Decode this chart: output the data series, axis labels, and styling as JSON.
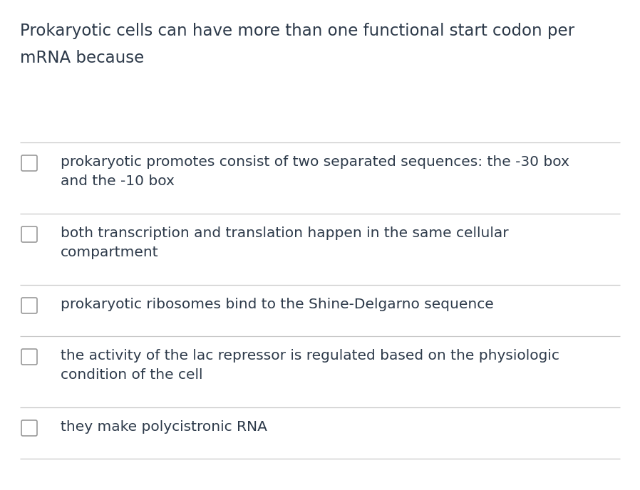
{
  "background_color": "#ffffff",
  "title_lines": [
    "Prokaryotic cells can have more than one functional start codon per",
    "mRNA because"
  ],
  "title_fontsize": 16.5,
  "title_color": "#2d3a4a",
  "options": [
    [
      "prokaryotic promotes consist of two separated sequences: the -30 box",
      "and the -10 box"
    ],
    [
      "both transcription and translation happen in the same cellular",
      "compartment"
    ],
    [
      "prokaryotic ribosomes bind to the Shine-Delgarno sequence"
    ],
    [
      "the activity of the lac repressor is regulated based on the physiologic",
      "condition of the cell"
    ],
    [
      "they make polycistronic RNA"
    ]
  ],
  "option_fontsize": 14.5,
  "option_color": "#2d3a4a",
  "divider_color": "#c8c8c8",
  "checkbox_color": "#999999",
  "fig_width": 8.98,
  "fig_height": 6.88,
  "dpi": 100
}
